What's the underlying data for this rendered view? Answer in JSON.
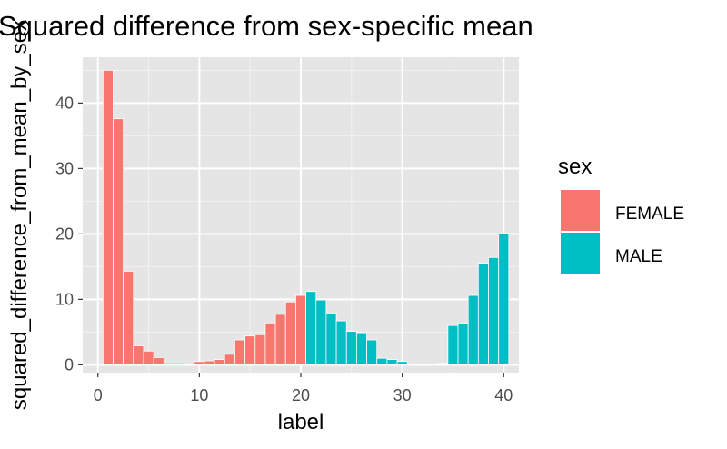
{
  "chart_data": {
    "type": "bar",
    "title": "Squared difference from sex-specific mean",
    "xlabel": "label",
    "ylabel": "squared_difference_from_mean_by_sex",
    "xlim": [
      -1.5,
      41.5
    ],
    "ylim": [
      -1.2,
      47
    ],
    "xticks": [
      0,
      10,
      20,
      30,
      40
    ],
    "yticks": [
      0,
      10,
      20,
      30,
      40
    ],
    "grid": true,
    "background": "#e5e5e5",
    "legend": {
      "title": "sex",
      "position": "right",
      "entries": [
        {
          "label": "FEMALE",
          "color": "#f8766d"
        },
        {
          "label": "MALE",
          "color": "#00bfc4"
        }
      ]
    },
    "series": [
      {
        "name": "FEMALE",
        "color": "#f8766d",
        "x": [
          1,
          2,
          3,
          4,
          5,
          6,
          7,
          8,
          9,
          10,
          11,
          12,
          13,
          14,
          15,
          16,
          17,
          18,
          19,
          20
        ],
        "values": [
          45,
          37.6,
          14.3,
          2.9,
          2.1,
          1.1,
          0.3,
          0.3,
          0.0,
          0.5,
          0.6,
          0.8,
          1.6,
          3.8,
          4.4,
          4.6,
          6.4,
          7.7,
          9.6,
          10.6
        ]
      },
      {
        "name": "MALE",
        "color": "#00bfc4",
        "x": [
          21,
          22,
          23,
          24,
          25,
          26,
          27,
          28,
          29,
          30,
          31,
          32,
          33,
          34,
          35,
          36,
          37,
          38,
          39,
          40
        ],
        "values": [
          11.2,
          9.9,
          7.8,
          6.7,
          5.1,
          4.9,
          3.8,
          1.0,
          0.8,
          0.5,
          0.1,
          0.0,
          0.1,
          0.2,
          6.0,
          6.3,
          10.6,
          15.5,
          16.4,
          20.0
        ]
      }
    ]
  }
}
